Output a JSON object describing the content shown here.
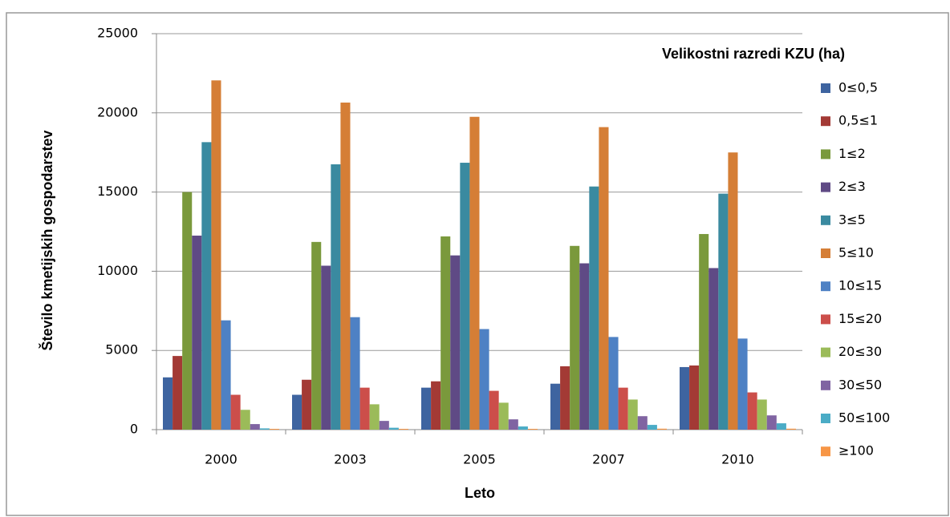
{
  "chart_data": {
    "type": "bar",
    "y_label": "Število kmetijskih gospodarstev",
    "x_label": "Leto",
    "legend_title": "Velikostni razredi KZU (ha)",
    "legend_position": "right",
    "grid": true,
    "categories": [
      "2000",
      "2003",
      "2005",
      "2007",
      "2010"
    ],
    "ylim": [
      0,
      25000
    ],
    "yticks": [
      0,
      5000,
      10000,
      15000,
      20000,
      25000
    ],
    "series": [
      {
        "name": "0≤0,5",
        "color": "#3e64a0",
        "values": [
          3300,
          2200,
          2650,
          2900,
          3950
        ]
      },
      {
        "name": "0,5≤1",
        "color": "#a33a35",
        "values": [
          4650,
          3150,
          3050,
          4000,
          4050
        ]
      },
      {
        "name": "1≤2",
        "color": "#7a993c",
        "values": [
          15000,
          11850,
          12200,
          11600,
          12350
        ]
      },
      {
        "name": "2≤3",
        "color": "#5f4a85",
        "values": [
          12250,
          10350,
          11000,
          10500,
          10200
        ]
      },
      {
        "name": "3≤5",
        "color": "#3a8aa0",
        "values": [
          18150,
          16750,
          16850,
          15350,
          14900
        ]
      },
      {
        "name": "5≤10",
        "color": "#d57e36",
        "values": [
          22050,
          20650,
          19750,
          19100,
          17500
        ]
      },
      {
        "name": "10≤15",
        "color": "#4e81c4",
        "values": [
          6900,
          7100,
          6350,
          5850,
          5750
        ]
      },
      {
        "name": "15≤20",
        "color": "#cc4e4a",
        "values": [
          2200,
          2650,
          2450,
          2650,
          2350
        ]
      },
      {
        "name": "20≤30",
        "color": "#9bbb59",
        "values": [
          1250,
          1600,
          1700,
          1900,
          1900
        ]
      },
      {
        "name": "30≤50",
        "color": "#8064a2",
        "values": [
          350,
          550,
          650,
          850,
          900
        ]
      },
      {
        "name": "50≤100",
        "color": "#4bacc6",
        "values": [
          80,
          120,
          200,
          300,
          400
        ]
      },
      {
        "name": "≥100",
        "color": "#f79646",
        "values": [
          50,
          50,
          50,
          60,
          60
        ]
      }
    ]
  }
}
